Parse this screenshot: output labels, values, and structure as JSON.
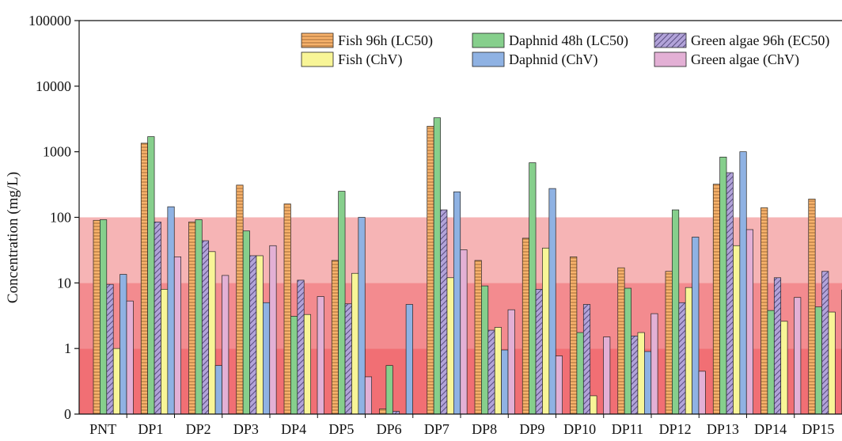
{
  "chart_data": {
    "type": "bar",
    "title": "",
    "xlabel": "",
    "ylabel": "Concentration (mg/L)",
    "yscale": "log",
    "ylim": [
      0.1,
      100000
    ],
    "yticks": [
      {
        "value": 0.1,
        "label": "0"
      },
      {
        "value": 1,
        "label": "1"
      },
      {
        "value": 10,
        "label": "10"
      },
      {
        "value": 100,
        "label": "100"
      },
      {
        "value": 1000,
        "label": "1000"
      },
      {
        "value": 10000,
        "label": "10000"
      },
      {
        "value": 100000,
        "label": "100000"
      }
    ],
    "grid": false,
    "legend_position": "top-right",
    "background_bands": [
      {
        "from": 0.1,
        "to": 1,
        "color": "#ee4f55",
        "opacity": 0.82
      },
      {
        "from": 1,
        "to": 10,
        "color": "#f07276",
        "opacity": 0.82
      },
      {
        "from": 10,
        "to": 100,
        "color": "#f4a3a5",
        "opacity": 0.82
      }
    ],
    "categories": [
      "PNT",
      "DP1",
      "DP2",
      "DP3",
      "DP4",
      "DP5",
      "DP6",
      "DP7",
      "DP8",
      "DP9",
      "DP10",
      "DP11",
      "DP12",
      "DP13",
      "DP14",
      "DP15"
    ],
    "series": [
      {
        "name": "Fish 96h (LC50)",
        "color": "#f7b26b",
        "pattern": "hlines",
        "values": [
          90,
          1350,
          85,
          310,
          160,
          22,
          0.12,
          2450,
          22,
          48,
          25,
          17,
          15,
          320,
          140,
          190
        ]
      },
      {
        "name": "Fish (ChV)",
        "color": "#f8f597",
        "pattern": "none",
        "values": [
          1.0,
          8.0,
          30,
          26,
          3.3,
          14,
          0.1,
          12,
          2.1,
          34,
          0.19,
          1.75,
          8.5,
          37,
          2.6,
          3.6
        ]
      },
      {
        "name": "Daphnid 48h (LC50)",
        "color": "#86cf8c",
        "pattern": "none",
        "values": [
          92,
          1700,
          92,
          62,
          3.1,
          250,
          0.55,
          3300,
          9,
          680,
          1.75,
          8.3,
          130,
          830,
          3.8,
          4.3
        ]
      },
      {
        "name": "Daphnid (ChV)",
        "color": "#8fb2e3",
        "pattern": "none",
        "values": [
          13.5,
          145,
          0.55,
          5,
          0.1,
          100,
          4.7,
          245,
          0.95,
          275,
          0.1,
          0.9,
          50,
          1000,
          0.1,
          0.1
        ]
      },
      {
        "name": "Green algae 96h (EC50)",
        "color": "#b2a3d9",
        "pattern": "diag",
        "values": [
          9.5,
          85,
          44,
          26,
          11,
          4.8,
          0.11,
          130,
          1.9,
          8,
          4.7,
          1.55,
          5,
          480,
          12,
          15
        ]
      },
      {
        "name": "Green algae (ChV)",
        "color": "#e3b0d5",
        "pattern": "none",
        "values": [
          5.3,
          25,
          13,
          37,
          6.2,
          0.37,
          0.1,
          32,
          3.9,
          0.77,
          1.5,
          3.4,
          0.45,
          65,
          6,
          7.8
        ]
      }
    ],
    "bar_order": [
      "Fish 96h (LC50)",
      "Daphnid 48h (LC50)",
      "Green algae 96h (EC50)",
      "Fish (ChV)",
      "Daphnid (ChV)",
      "Green algae (ChV)"
    ],
    "legend_order": [
      "Fish 96h (LC50)",
      "Daphnid 48h (LC50)",
      "Green algae 96h (EC50)",
      "Fish (ChV)",
      "Daphnid (ChV)",
      "Green algae (ChV)"
    ]
  }
}
